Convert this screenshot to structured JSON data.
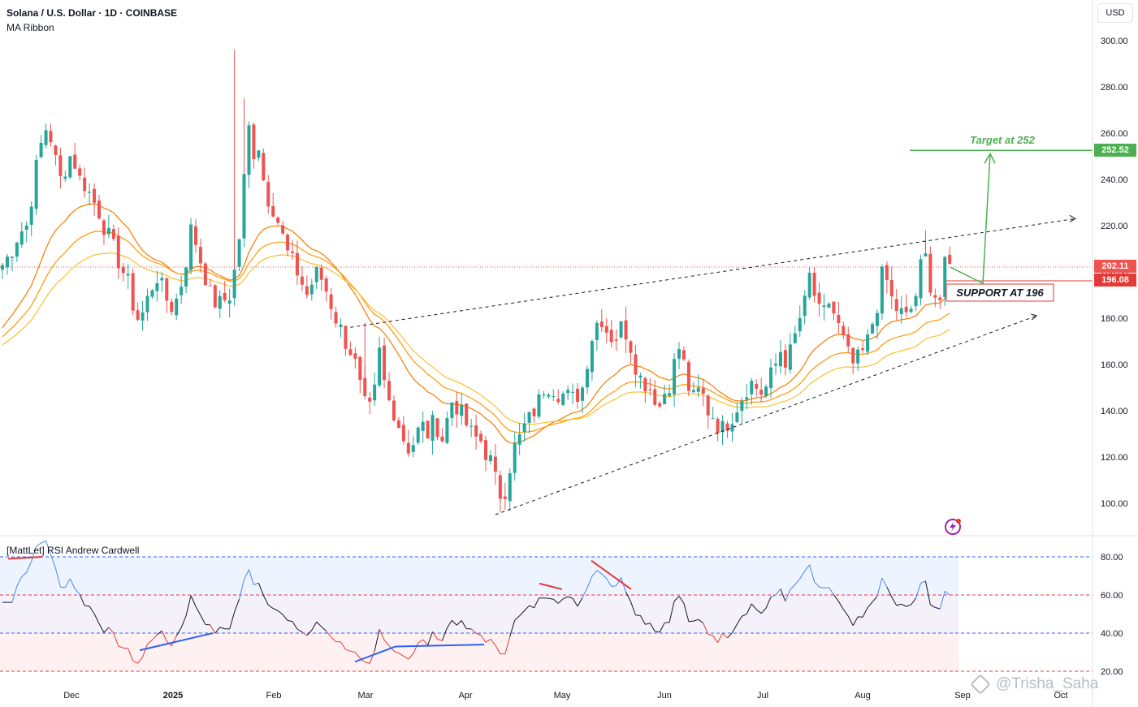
{
  "header": {
    "title": "Solana / U.S. Dollar · 1D · COINBASE",
    "indicator": "MA Ribbon",
    "currency_button": "USD"
  },
  "rsi_panel": {
    "name": "[MattLet] RSI Andrew Cardwell",
    "levels": [
      80,
      60,
      40,
      20
    ]
  },
  "price_labels": {
    "target": "252.52",
    "current": "202.11",
    "support": "196.08"
  },
  "annotations": {
    "target_text": "Target at 252",
    "support_text": "SUPPORT AT 196"
  },
  "watermark": "@Trisha_Saha",
  "colors": {
    "up": "#26a69a",
    "down": "#ef5350",
    "target": "#4caf50",
    "support": "#e53935",
    "ma_fast": "#f57c00",
    "ma_mid": "#ff9800",
    "ma_slow": "#fbc02d",
    "rsi_blue": "#2962ff",
    "rsi_red": "#e53935"
  },
  "chart_data": {
    "type": "candlestick",
    "ylim": [
      90,
      305
    ],
    "y_ticks": [
      "300.00",
      "280.00",
      "260.00",
      "240.00",
      "220.00",
      "200.00",
      "180.00",
      "160.00",
      "140.00",
      "120.00",
      "100.00"
    ],
    "x_ticks": [
      "Dec",
      "2025",
      "Feb",
      "Mar",
      "Apr",
      "May",
      "Jun",
      "Jul",
      "Aug",
      "Sep",
      "Oct"
    ],
    "close_path": [
      [
        0,
        203
      ],
      [
        1,
        206
      ],
      [
        2,
        210
      ],
      [
        3,
        215
      ],
      [
        4,
        218
      ],
      [
        5,
        220
      ],
      [
        6,
        232
      ],
      [
        7,
        245
      ],
      [
        8,
        255
      ],
      [
        9,
        262
      ],
      [
        10,
        258
      ],
      [
        11,
        248
      ],
      [
        12,
        240
      ],
      [
        13,
        245
      ],
      [
        14,
        250
      ],
      [
        15,
        247
      ],
      [
        16,
        240
      ],
      [
        17,
        238
      ],
      [
        18,
        234
      ],
      [
        19,
        230
      ],
      [
        20,
        226
      ],
      [
        21,
        220
      ],
      [
        22,
        215
      ],
      [
        23,
        210
      ],
      [
        24,
        205
      ],
      [
        25,
        200
      ],
      [
        26,
        195
      ],
      [
        27,
        186
      ],
      [
        28,
        180
      ],
      [
        29,
        182
      ],
      [
        30,
        188
      ],
      [
        31,
        194
      ],
      [
        32,
        198
      ],
      [
        33,
        193
      ],
      [
        34,
        188
      ],
      [
        35,
        185
      ],
      [
        36,
        188
      ],
      [
        37,
        195
      ],
      [
        38,
        205
      ],
      [
        39,
        218
      ],
      [
        40,
        213
      ],
      [
        41,
        205
      ],
      [
        42,
        198
      ],
      [
        43,
        190
      ],
      [
        44,
        187
      ],
      [
        45,
        186
      ],
      [
        46,
        188
      ],
      [
        47,
        190
      ],
      [
        48,
        200
      ],
      [
        49,
        215
      ],
      [
        50,
        240
      ],
      [
        51,
        262
      ],
      [
        52,
        252
      ],
      [
        53,
        255
      ],
      [
        54,
        240
      ],
      [
        55,
        232
      ],
      [
        56,
        228
      ],
      [
        57,
        222
      ],
      [
        58,
        215
      ],
      [
        59,
        208
      ],
      [
        60,
        204
      ],
      [
        61,
        200
      ],
      [
        62,
        195
      ],
      [
        63,
        190
      ],
      [
        64,
        195
      ],
      [
        65,
        199
      ],
      [
        66,
        197
      ],
      [
        67,
        192
      ],
      [
        68,
        186
      ],
      [
        69,
        180
      ],
      [
        70,
        175
      ],
      [
        71,
        170
      ],
      [
        72,
        166
      ],
      [
        73,
        160
      ],
      [
        74,
        150
      ],
      [
        75,
        142
      ],
      [
        76,
        140
      ],
      [
        77,
        148
      ],
      [
        78,
        165
      ],
      [
        79,
        152
      ],
      [
        80,
        144
      ],
      [
        81,
        140
      ],
      [
        82,
        134
      ],
      [
        83,
        128
      ],
      [
        84,
        124
      ],
      [
        85,
        126
      ],
      [
        86,
        131
      ],
      [
        87,
        133
      ],
      [
        88,
        130
      ],
      [
        89,
        134
      ],
      [
        90,
        133
      ],
      [
        91,
        128
      ],
      [
        92,
        136
      ],
      [
        93,
        144
      ],
      [
        94,
        142
      ],
      [
        95,
        138
      ],
      [
        96,
        134
      ],
      [
        97,
        130
      ],
      [
        98,
        128
      ],
      [
        99,
        127
      ],
      [
        100,
        122
      ],
      [
        101,
        118
      ],
      [
        102,
        110
      ],
      [
        103,
        104
      ],
      [
        104,
        106
      ],
      [
        105,
        116
      ],
      [
        106,
        124
      ],
      [
        107,
        128
      ],
      [
        108,
        133
      ],
      [
        109,
        136
      ],
      [
        110,
        140
      ],
      [
        111,
        144
      ],
      [
        112,
        150
      ],
      [
        113,
        151
      ],
      [
        114,
        150
      ],
      [
        115,
        148
      ],
      [
        116,
        147
      ],
      [
        117,
        146
      ],
      [
        118,
        145
      ],
      [
        119,
        147
      ],
      [
        120,
        150
      ],
      [
        121,
        162
      ],
      [
        122,
        172
      ],
      [
        123,
        178
      ],
      [
        124,
        180
      ],
      [
        125,
        175
      ],
      [
        126,
        172
      ],
      [
        127,
        172
      ],
      [
        128,
        176
      ],
      [
        129,
        174
      ],
      [
        130,
        168
      ],
      [
        131,
        160
      ],
      [
        132,
        154
      ],
      [
        133,
        152
      ],
      [
        134,
        150
      ],
      [
        135,
        146
      ],
      [
        136,
        142
      ],
      [
        137,
        148
      ],
      [
        138,
        152
      ],
      [
        139,
        160
      ],
      [
        140,
        167
      ],
      [
        141,
        160
      ],
      [
        142,
        150
      ],
      [
        143,
        145
      ],
      [
        144,
        148
      ],
      [
        145,
        146
      ],
      [
        146,
        140
      ],
      [
        147,
        138
      ],
      [
        148,
        134
      ],
      [
        149,
        132
      ],
      [
        150,
        135
      ],
      [
        151,
        138
      ],
      [
        152,
        142
      ],
      [
        153,
        146
      ],
      [
        154,
        150
      ],
      [
        155,
        152
      ],
      [
        156,
        150
      ],
      [
        157,
        148
      ],
      [
        158,
        150
      ],
      [
        159,
        155
      ],
      [
        160,
        160
      ],
      [
        161,
        166
      ],
      [
        162,
        162
      ],
      [
        163,
        165
      ],
      [
        164,
        172
      ],
      [
        165,
        180
      ],
      [
        166,
        186
      ],
      [
        167,
        198
      ],
      [
        168,
        190
      ],
      [
        169,
        182
      ],
      [
        170,
        182
      ],
      [
        171,
        187
      ],
      [
        172,
        182
      ],
      [
        173,
        176
      ],
      [
        174,
        170
      ],
      [
        175,
        164
      ],
      [
        176,
        160
      ],
      [
        177,
        162
      ],
      [
        178,
        165
      ],
      [
        179,
        170
      ],
      [
        180,
        178
      ],
      [
        181,
        186
      ],
      [
        182,
        198
      ],
      [
        183,
        196
      ],
      [
        184,
        188
      ],
      [
        185,
        184
      ],
      [
        186,
        182
      ],
      [
        187,
        180
      ],
      [
        188,
        184
      ],
      [
        189,
        190
      ],
      [
        190,
        202
      ],
      [
        191,
        206
      ],
      [
        192,
        195
      ],
      [
        193,
        190
      ],
      [
        194,
        188
      ],
      [
        195,
        202
      ],
      [
        196,
        202
      ]
    ],
    "trendlines": [
      {
        "name": "upper-channel",
        "from": [
          72,
          176
        ],
        "to": [
          222,
          223
        ]
      },
      {
        "name": "lower-channel",
        "from": [
          102,
          95
        ],
        "to": [
          214,
          181
        ]
      },
      {
        "name": "support",
        "value": 196.08
      },
      {
        "name": "target",
        "value": 252.52
      }
    ],
    "rsi_levels": [
      80,
      60,
      40,
      20
    ]
  }
}
